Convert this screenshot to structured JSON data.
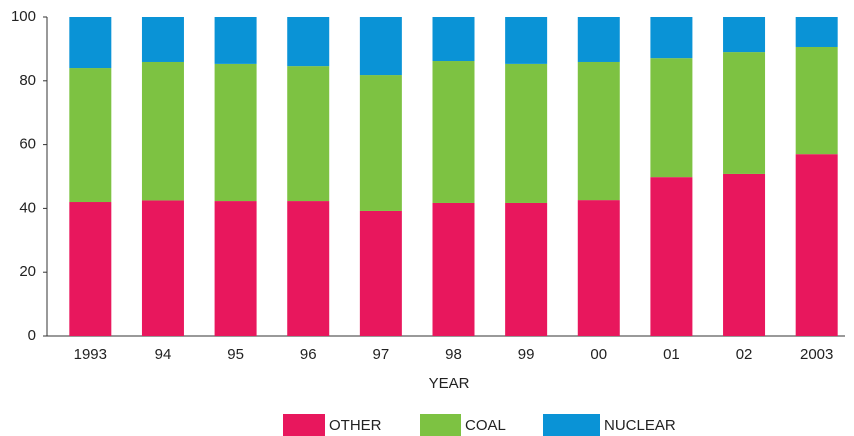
{
  "chart_data": {
    "type": "bar",
    "stacked": true,
    "x_label": "YEAR",
    "categories": [
      "1993",
      "94",
      "95",
      "96",
      "97",
      "98",
      "99",
      "00",
      "01",
      "02",
      "2003"
    ],
    "series": [
      {
        "name": "OTHER",
        "color": "#e8175d",
        "values": [
          42,
          42.5,
          42.3,
          42.3,
          39.2,
          41.7,
          41.7,
          42.6,
          49.8,
          50.8,
          57
        ]
      },
      {
        "name": "COAL",
        "color": "#7dc242",
        "values": [
          42,
          43.4,
          43,
          42.3,
          42.6,
          44.5,
          43.6,
          43.3,
          37.3,
          38.2,
          33.6
        ]
      },
      {
        "name": "NUCLEAR",
        "color": "#0a93d6",
        "values": [
          16,
          14.1,
          14.7,
          15.4,
          18.2,
          13.8,
          14.7,
          14.1,
          12.9,
          11,
          9.4
        ]
      }
    ],
    "ylim": [
      0,
      100
    ],
    "yticks": [
      0,
      20,
      40,
      60,
      80,
      100
    ],
    "grid": false
  }
}
